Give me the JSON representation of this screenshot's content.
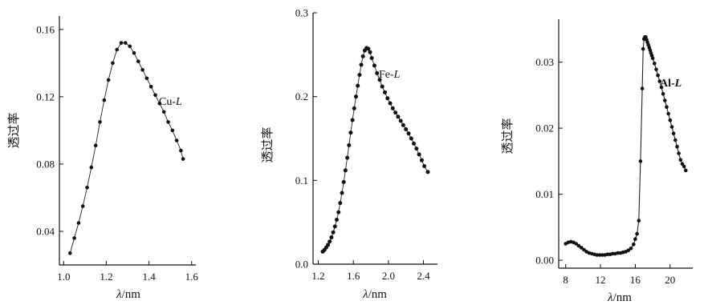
{
  "chart_data": [
    {
      "type": "scatter",
      "series": [
        {
          "name": "Cu-L",
          "x": [
            1.03,
            1.05,
            1.07,
            1.09,
            1.11,
            1.13,
            1.15,
            1.17,
            1.19,
            1.21,
            1.23,
            1.25,
            1.27,
            1.29,
            1.31,
            1.33,
            1.35,
            1.37,
            1.39,
            1.41,
            1.43,
            1.45,
            1.47,
            1.49,
            1.51,
            1.53,
            1.55,
            1.56
          ],
          "y": [
            0.027,
            0.036,
            0.045,
            0.055,
            0.066,
            0.078,
            0.091,
            0.105,
            0.118,
            0.13,
            0.14,
            0.148,
            0.152,
            0.152,
            0.15,
            0.146,
            0.141,
            0.136,
            0.131,
            0.126,
            0.121,
            0.116,
            0.111,
            0.105,
            0.1,
            0.094,
            0.088,
            0.083
          ]
        }
      ],
      "xlim": [
        0.98,
        1.62
      ],
      "ylim": [
        0.02,
        0.168
      ],
      "xticks": [
        "1.0",
        "1.2",
        "1.4",
        "1.6"
      ],
      "xtick_values": [
        1.0,
        1.2,
        1.4,
        1.6
      ],
      "yticks": [
        "0.04",
        "0.08",
        "0.12",
        "0.16"
      ],
      "ytick_values": [
        0.04,
        0.08,
        0.12,
        0.16
      ],
      "xlabel_italic": "λ",
      "xlabel_unit": "/nm",
      "ylabel": "透过率",
      "label_prefix": "Cu-",
      "label_italic": "L"
    },
    {
      "type": "scatter",
      "series": [
        {
          "name": "Fe-L",
          "x": [
            1.25,
            1.27,
            1.29,
            1.31,
            1.33,
            1.35,
            1.37,
            1.39,
            1.41,
            1.43,
            1.45,
            1.47,
            1.49,
            1.51,
            1.53,
            1.55,
            1.57,
            1.59,
            1.61,
            1.63,
            1.65,
            1.67,
            1.69,
            1.71,
            1.73,
            1.75,
            1.77,
            1.79,
            1.81,
            1.84,
            1.87,
            1.9,
            1.93,
            1.96,
            1.99,
            2.02,
            2.05,
            2.08,
            2.11,
            2.14,
            2.17,
            2.2,
            2.23,
            2.26,
            2.29,
            2.32,
            2.35,
            2.38,
            2.41,
            2.45
          ],
          "y": [
            0.015,
            0.017,
            0.02,
            0.023,
            0.027,
            0.032,
            0.038,
            0.045,
            0.053,
            0.062,
            0.073,
            0.085,
            0.098,
            0.112,
            0.127,
            0.142,
            0.157,
            0.172,
            0.186,
            0.2,
            0.213,
            0.226,
            0.238,
            0.248,
            0.255,
            0.258,
            0.257,
            0.253,
            0.246,
            0.237,
            0.228,
            0.22,
            0.212,
            0.205,
            0.198,
            0.192,
            0.186,
            0.181,
            0.176,
            0.171,
            0.166,
            0.161,
            0.156,
            0.15,
            0.144,
            0.138,
            0.131,
            0.124,
            0.117,
            0.11
          ]
        }
      ],
      "xlim": [
        1.14,
        2.56
      ],
      "ylim": [
        0.0,
        0.3
      ],
      "xticks": [
        "1.2",
        "1.6",
        "2.0",
        "2.4"
      ],
      "xtick_values": [
        1.2,
        1.6,
        2.0,
        2.4
      ],
      "yticks": [
        "0.0",
        "0.1",
        "0.2",
        "0.3"
      ],
      "ytick_values": [
        0.0,
        0.1,
        0.2,
        0.3
      ],
      "xlabel_italic": "λ",
      "xlabel_unit": "/nm",
      "ylabel": "透过率",
      "label_prefix": "Fe-",
      "label_italic": "L"
    },
    {
      "type": "scatter",
      "series": [
        {
          "name": "Al-L",
          "x": [
            8.0,
            8.3,
            8.6,
            8.9,
            9.2,
            9.5,
            9.8,
            10.1,
            10.4,
            10.7,
            11.0,
            11.3,
            11.6,
            11.9,
            12.2,
            12.5,
            12.8,
            13.1,
            13.4,
            13.7,
            14.0,
            14.3,
            14.6,
            14.9,
            15.2,
            15.5,
            15.8,
            16.0,
            16.2,
            16.4,
            16.6,
            16.8,
            16.9,
            17.0,
            17.1,
            17.2,
            17.3,
            17.4,
            17.5,
            17.6,
            17.7,
            17.8,
            17.9,
            18.0,
            18.2,
            18.4,
            18.6,
            18.8,
            19.0,
            19.2,
            19.4,
            19.6,
            19.8,
            20.0,
            20.2,
            20.4,
            20.6,
            20.8,
            21.0,
            21.2,
            21.4,
            21.6,
            21.8
          ],
          "y": [
            0.0025,
            0.0027,
            0.0028,
            0.0027,
            0.0025,
            0.0022,
            0.0019,
            0.0016,
            0.0013,
            0.0011,
            0.001,
            0.0009,
            0.0008,
            0.0008,
            0.0008,
            0.0008,
            0.0009,
            0.0009,
            0.001,
            0.001,
            0.0011,
            0.0011,
            0.0012,
            0.0013,
            0.0015,
            0.0018,
            0.0024,
            0.0032,
            0.004,
            0.006,
            0.015,
            0.026,
            0.032,
            0.0335,
            0.0338,
            0.0338,
            0.0334,
            0.033,
            0.0326,
            0.0322,
            0.0318,
            0.0314,
            0.031,
            0.0306,
            0.0298,
            0.0289,
            0.028,
            0.0271,
            0.0262,
            0.0252,
            0.0242,
            0.0232,
            0.0222,
            0.0212,
            0.0202,
            0.0192,
            0.0182,
            0.0172,
            0.0162,
            0.0152,
            0.0146,
            0.0142,
            0.0136
          ]
        }
      ],
      "xlim": [
        7.2,
        22.6
      ],
      "ylim": [
        -0.0012,
        0.0365
      ],
      "xticks": [
        "8",
        "12",
        "16",
        "20"
      ],
      "xtick_values": [
        8,
        12,
        16,
        20
      ],
      "yticks": [
        "0.00",
        "0.01",
        "0.02",
        "0.03"
      ],
      "ytick_values": [
        0.0,
        0.01,
        0.02,
        0.03
      ],
      "xlabel_italic": "λ",
      "xlabel_unit": "/nm",
      "ylabel": "透过率",
      "label_prefix": "Al-",
      "label_italic": "L"
    }
  ]
}
